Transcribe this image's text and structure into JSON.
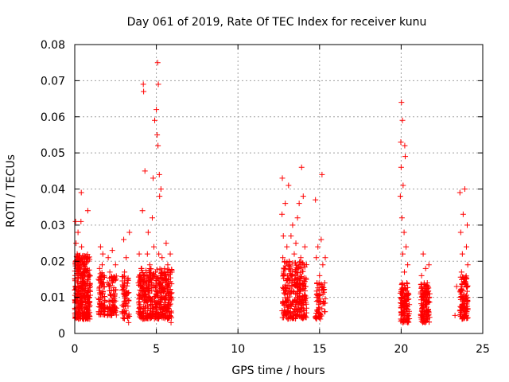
{
  "chart_data": {
    "type": "scatter",
    "title": "Day 061 of 2019, Rate Of TEC Index for receiver kunu",
    "xlabel": "GPS time / hours",
    "ylabel": "ROTI / TECUs",
    "xlim": [
      0,
      25
    ],
    "ylim": [
      0,
      0.08
    ],
    "x_ticks": [
      0,
      5,
      10,
      15,
      20,
      25
    ],
    "y_ticks": [
      0,
      0.01,
      0.02,
      0.03,
      0.04,
      0.05,
      0.06,
      0.07,
      0.08
    ],
    "x_tick_labels": [
      "0",
      "5",
      "10",
      "15",
      "20",
      "25"
    ],
    "y_tick_labels": [
      "0",
      "0.01",
      "0.02",
      "0.03",
      "0.04",
      "0.05",
      "0.06",
      "0.07",
      "0.08"
    ],
    "grid": true,
    "marker": "plus",
    "color": "#ff0000",
    "series": [
      {
        "name": "ROTI",
        "points": [
          [
            0.0,
            0.012
          ],
          [
            0.02,
            0.009
          ],
          [
            0.05,
            0.031
          ],
          [
            0.08,
            0.025
          ],
          [
            0.1,
            0.018
          ],
          [
            0.12,
            0.007
          ],
          [
            0.15,
            0.022
          ],
          [
            0.18,
            0.014
          ],
          [
            0.2,
            0.028
          ],
          [
            0.22,
            0.006
          ],
          [
            0.25,
            0.011
          ],
          [
            0.28,
            0.019
          ],
          [
            0.3,
            0.009
          ],
          [
            0.32,
            0.016
          ],
          [
            0.35,
            0.012
          ],
          [
            0.38,
            0.031
          ],
          [
            0.4,
            0.039
          ],
          [
            0.42,
            0.024
          ],
          [
            0.45,
            0.013
          ],
          [
            0.48,
            0.008
          ],
          [
            0.5,
            0.017
          ],
          [
            0.52,
            0.021
          ],
          [
            0.55,
            0.01
          ],
          [
            0.58,
            0.006
          ],
          [
            0.6,
            0.014
          ],
          [
            0.62,
            0.019
          ],
          [
            0.65,
            0.009
          ],
          [
            0.68,
            0.013
          ],
          [
            0.7,
            0.005
          ],
          [
            0.72,
            0.011
          ],
          [
            0.75,
            0.018
          ],
          [
            0.78,
            0.007
          ],
          [
            0.8,
            0.034
          ],
          [
            0.82,
            0.012
          ],
          [
            0.85,
            0.008
          ],
          [
            0.88,
            0.016
          ],
          [
            0.9,
            0.01
          ],
          [
            0.92,
            0.004
          ],
          [
            0.95,
            0.013
          ],
          [
            1.5,
            0.012
          ],
          [
            1.52,
            0.018
          ],
          [
            1.55,
            0.008
          ],
          [
            1.58,
            0.024
          ],
          [
            1.6,
            0.015
          ],
          [
            1.62,
            0.006
          ],
          [
            1.65,
            0.011
          ],
          [
            1.68,
            0.019
          ],
          [
            1.7,
            0.01
          ],
          [
            1.72,
            0.022
          ],
          [
            1.75,
            0.013
          ],
          [
            1.78,
            0.007
          ],
          [
            1.8,
            0.016
          ],
          [
            1.82,
            0.009
          ],
          [
            2.0,
            0.014
          ],
          [
            2.05,
            0.021
          ],
          [
            2.1,
            0.009
          ],
          [
            2.15,
            0.017
          ],
          [
            2.2,
            0.005
          ],
          [
            2.25,
            0.012
          ],
          [
            2.3,
            0.023
          ],
          [
            2.35,
            0.008
          ],
          [
            2.4,
            0.015
          ],
          [
            2.45,
            0.011
          ],
          [
            2.5,
            0.019
          ],
          [
            2.55,
            0.007
          ],
          [
            2.9,
            0.006
          ],
          [
            2.95,
            0.013
          ],
          [
            3.0,
            0.026
          ],
          [
            3.05,
            0.017
          ],
          [
            3.1,
            0.009
          ],
          [
            3.15,
            0.021
          ],
          [
            3.2,
            0.011
          ],
          [
            3.25,
            0.015
          ],
          [
            3.3,
            0.003
          ],
          [
            3.35,
            0.028
          ],
          [
            3.9,
            0.014
          ],
          [
            3.95,
            0.022
          ],
          [
            4.0,
            0.008
          ],
          [
            4.05,
            0.013
          ],
          [
            4.1,
            0.018
          ],
          [
            4.15,
            0.034
          ],
          [
            4.2,
            0.069
          ],
          [
            4.22,
            0.067
          ],
          [
            4.25,
            0.011
          ],
          [
            4.3,
            0.045
          ],
          [
            4.35,
            0.016
          ],
          [
            4.4,
            0.009
          ],
          [
            4.45,
            0.022
          ],
          [
            4.5,
            0.028
          ],
          [
            4.55,
            0.012
          ],
          [
            4.6,
            0.019
          ],
          [
            4.65,
            0.007
          ],
          [
            4.7,
            0.014
          ],
          [
            4.75,
            0.032
          ],
          [
            4.8,
            0.043
          ],
          [
            4.85,
            0.024
          ],
          [
            4.9,
            0.059
          ],
          [
            4.95,
            0.017
          ],
          [
            5.0,
            0.062
          ],
          [
            5.02,
            0.011
          ],
          [
            5.05,
            0.055
          ],
          [
            5.08,
            0.075
          ],
          [
            5.1,
            0.052
          ],
          [
            5.12,
            0.069
          ],
          [
            5.15,
            0.022
          ],
          [
            5.18,
            0.044
          ],
          [
            5.2,
            0.038
          ],
          [
            5.22,
            0.009
          ],
          [
            5.25,
            0.016
          ],
          [
            5.28,
            0.04
          ],
          [
            5.3,
            0.012
          ],
          [
            5.35,
            0.021
          ],
          [
            5.4,
            0.007
          ],
          [
            5.45,
            0.015
          ],
          [
            5.5,
            0.018
          ],
          [
            5.55,
            0.005
          ],
          [
            5.6,
            0.025
          ],
          [
            5.65,
            0.011
          ],
          [
            5.7,
            0.019
          ],
          [
            5.75,
            0.013
          ],
          [
            5.8,
            0.008
          ],
          [
            5.85,
            0.022
          ],
          [
            5.9,
            0.003
          ],
          [
            5.95,
            0.017
          ],
          [
            12.7,
            0.033
          ],
          [
            12.72,
            0.043
          ],
          [
            12.75,
            0.021
          ],
          [
            12.78,
            0.027
          ],
          [
            12.8,
            0.012
          ],
          [
            12.85,
            0.018
          ],
          [
            12.9,
            0.036
          ],
          [
            12.95,
            0.009
          ],
          [
            13.0,
            0.024
          ],
          [
            13.05,
            0.015
          ],
          [
            13.1,
            0.041
          ],
          [
            13.15,
            0.019
          ],
          [
            13.2,
            0.008
          ],
          [
            13.25,
            0.027
          ],
          [
            13.3,
            0.013
          ],
          [
            13.35,
            0.03
          ],
          [
            13.4,
            0.006
          ],
          [
            13.45,
            0.022
          ],
          [
            13.5,
            0.016
          ],
          [
            13.55,
            0.025
          ],
          [
            13.6,
            0.011
          ],
          [
            13.65,
            0.032
          ],
          [
            13.7,
            0.018
          ],
          [
            13.75,
            0.036
          ],
          [
            13.8,
            0.009
          ],
          [
            13.85,
            0.021
          ],
          [
            13.9,
            0.046
          ],
          [
            13.95,
            0.014
          ],
          [
            14.0,
            0.038
          ],
          [
            14.05,
            0.019
          ],
          [
            14.1,
            0.024
          ],
          [
            14.15,
            0.013
          ],
          [
            14.2,
            0.007
          ],
          [
            14.75,
            0.037
          ],
          [
            14.8,
            0.021
          ],
          [
            14.85,
            0.011
          ],
          [
            14.9,
            0.024
          ],
          [
            14.95,
            0.008
          ],
          [
            15.0,
            0.016
          ],
          [
            15.05,
            0.004
          ],
          [
            15.1,
            0.026
          ],
          [
            15.15,
            0.044
          ],
          [
            15.2,
            0.019
          ],
          [
            15.25,
            0.012
          ],
          [
            15.3,
            0.006
          ],
          [
            15.35,
            0.021
          ],
          [
            19.95,
            0.038
          ],
          [
            19.98,
            0.053
          ],
          [
            20.0,
            0.046
          ],
          [
            20.02,
            0.064
          ],
          [
            20.05,
            0.032
          ],
          [
            20.08,
            0.059
          ],
          [
            20.1,
            0.022
          ],
          [
            20.12,
            0.041
          ],
          [
            20.15,
            0.012
          ],
          [
            20.18,
            0.028
          ],
          [
            20.2,
            0.017
          ],
          [
            20.22,
            0.052
          ],
          [
            20.25,
            0.049
          ],
          [
            20.28,
            0.009
          ],
          [
            20.3,
            0.024
          ],
          [
            20.35,
            0.014
          ],
          [
            20.4,
            0.019
          ],
          [
            20.42,
            0.005
          ],
          [
            20.45,
            0.011
          ],
          [
            20.5,
            0.008
          ],
          [
            21.2,
            0.011
          ],
          [
            21.25,
            0.016
          ],
          [
            21.3,
            0.007
          ],
          [
            21.35,
            0.022
          ],
          [
            21.4,
            0.004
          ],
          [
            21.45,
            0.013
          ],
          [
            21.5,
            0.018
          ],
          [
            21.55,
            0.009
          ],
          [
            21.6,
            0.014
          ],
          [
            21.65,
            0.006
          ],
          [
            21.7,
            0.019
          ],
          [
            21.75,
            0.011
          ],
          [
            23.3,
            0.005
          ],
          [
            23.4,
            0.013
          ],
          [
            23.6,
            0.039
          ],
          [
            23.65,
            0.028
          ],
          [
            23.7,
            0.017
          ],
          [
            23.75,
            0.022
          ],
          [
            23.8,
            0.033
          ],
          [
            23.85,
            0.009
          ],
          [
            23.9,
            0.04
          ],
          [
            23.95,
            0.014
          ],
          [
            24.0,
            0.024
          ],
          [
            24.02,
            0.006
          ],
          [
            24.05,
            0.03
          ],
          [
            24.08,
            0.019
          ]
        ]
      }
    ],
    "dense_bands": [
      {
        "x0": 0.0,
        "x1": 0.95,
        "y0": 0.004,
        "y1": 0.022,
        "n": 320
      },
      {
        "x0": 1.45,
        "x1": 1.85,
        "y0": 0.005,
        "y1": 0.017,
        "n": 70
      },
      {
        "x0": 2.0,
        "x1": 2.55,
        "y0": 0.005,
        "y1": 0.016,
        "n": 80
      },
      {
        "x0": 2.9,
        "x1": 3.35,
        "y0": 0.004,
        "y1": 0.016,
        "n": 60
      },
      {
        "x0": 3.9,
        "x1": 5.95,
        "y0": 0.004,
        "y1": 0.018,
        "n": 420
      },
      {
        "x0": 12.7,
        "x1": 14.2,
        "y0": 0.004,
        "y1": 0.02,
        "n": 280
      },
      {
        "x0": 14.75,
        "x1": 15.35,
        "y0": 0.004,
        "y1": 0.014,
        "n": 60
      },
      {
        "x0": 19.95,
        "x1": 20.5,
        "y0": 0.003,
        "y1": 0.014,
        "n": 110
      },
      {
        "x0": 21.2,
        "x1": 21.75,
        "y0": 0.003,
        "y1": 0.014,
        "n": 120
      },
      {
        "x0": 23.6,
        "x1": 24.08,
        "y0": 0.004,
        "y1": 0.016,
        "n": 120
      }
    ]
  }
}
